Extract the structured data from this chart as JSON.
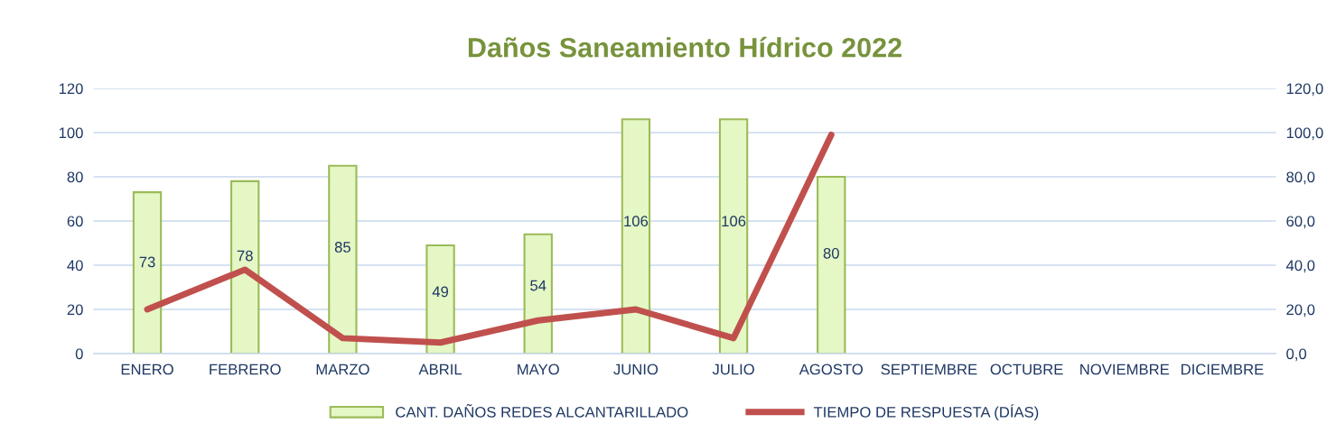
{
  "chart_data": {
    "type": "bar",
    "title": "Daños Saneamiento Hídrico 2022",
    "categories": [
      "ENERO",
      "FEBRERO",
      "MARZO",
      "ABRIL",
      "MAYO",
      "JUNIO",
      "JULIO",
      "AGOSTO",
      "SEPTIEMBRE",
      "OCTUBRE",
      "NOVIEMBRE",
      "DICIEMBRE"
    ],
    "series": [
      {
        "name": "CANT. DAÑOS REDES ALCANTARILLADO",
        "color": "#e4f7c4",
        "values": [
          73,
          78,
          85,
          49,
          54,
          106,
          106,
          80,
          null,
          null,
          null,
          null
        ],
        "value_labels": [
          "73",
          "78",
          "85",
          "49",
          "54",
          "106",
          "106",
          "80",
          null,
          null,
          null,
          null
        ]
      },
      {
        "name": "TIEMPO DE RESPUESTA (DÍAS)",
        "type": "line",
        "axis": "y2",
        "color": "#c0504d",
        "values": [
          20,
          38,
          7,
          5,
          15,
          20,
          7,
          99,
          null,
          null,
          null,
          null
        ]
      }
    ],
    "ylim": [
      0,
      120
    ],
    "yticks": [
      0,
      20,
      40,
      60,
      80,
      100,
      120
    ],
    "y2lim": [
      0,
      120
    ],
    "y2ticks": [
      {
        "value": 0,
        "label": "0,0"
      },
      {
        "value": 20,
        "label": "20,0"
      },
      {
        "value": 40,
        "label": "40,0"
      },
      {
        "value": 60,
        "label": "60,0"
      },
      {
        "value": 80,
        "label": "80,0"
      },
      {
        "value": 100,
        "label": "100,0"
      },
      {
        "value": 120,
        "label": "120,0"
      }
    ],
    "grid": "y",
    "legend": "bottom",
    "marker": "none",
    "line_style": "solid"
  }
}
